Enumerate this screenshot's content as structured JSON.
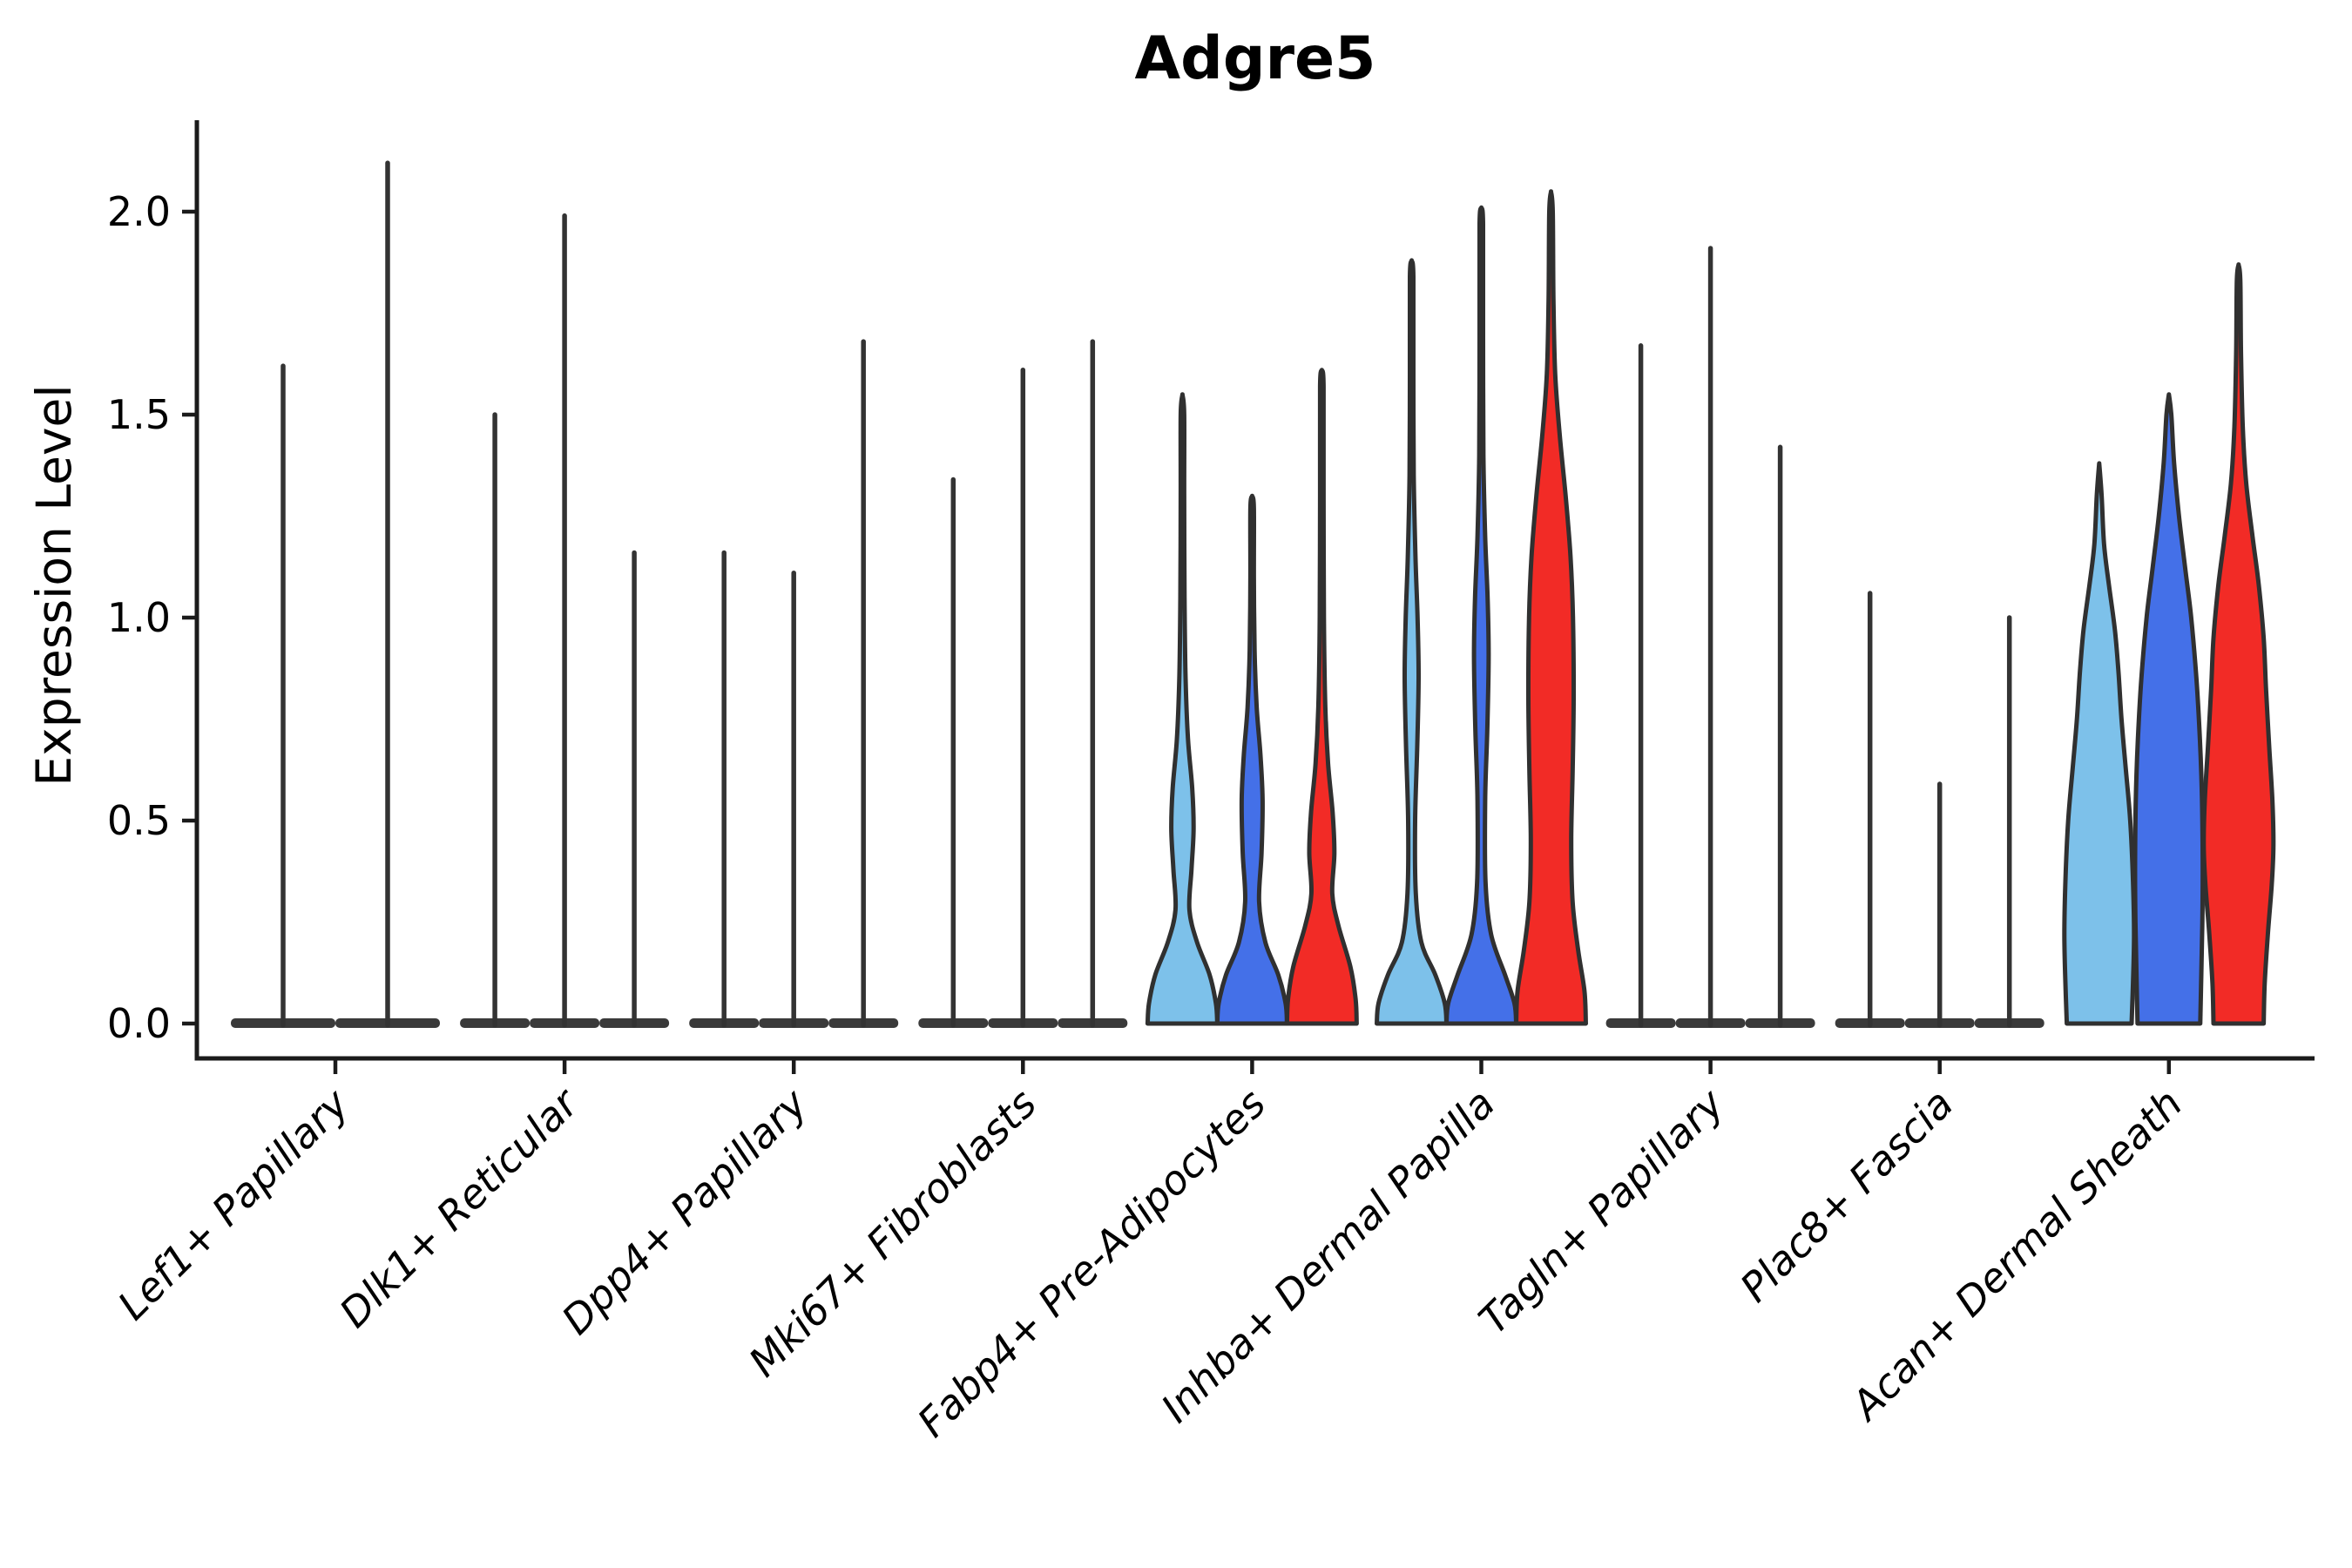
{
  "title": "Adgre5",
  "ylabel": "Expression Level",
  "chart_data": {
    "type": "violin",
    "title": "Adgre5",
    "xlabel": "",
    "ylabel": "Expression Level",
    "ylim": [
      -0.09,
      2.23
    ],
    "grid": false,
    "legend": "none",
    "y_ticks": [
      "0.0",
      "0.5",
      "1.0",
      "1.5",
      "2.0"
    ],
    "y_tick_values": [
      0,
      0.5,
      1.0,
      1.5,
      2.0
    ],
    "categories": [
      "Lef1+ Papillary",
      "Dlk1+ Reticular",
      "Dpp4+ Papillary",
      "Mki67+ Fibroblasts",
      "Fabp4+ Pre-Adipocytes",
      "Inhba+ Dermal Papilla",
      "Tagln+ Papillary",
      "Plac8+ Fascia",
      "Acan+ Dermal Sheath"
    ],
    "series_colors": {
      "light_blue": "#7DC1EA",
      "blue": "#4470E8",
      "red": "#F22B26"
    },
    "outline_color": "#303030",
    "spike_color": "#333333",
    "axis_color": "#1b1b1b",
    "groups": [
      {
        "category": "Lef1+ Papillary",
        "violins": [
          {
            "style": "spike",
            "color": "light_blue",
            "max": 1.62,
            "offset": -60,
            "halfwidth": 60
          },
          {
            "style": "spike",
            "color": "blue",
            "max": 2.12,
            "offset": 60,
            "halfwidth": 60
          }
        ]
      },
      {
        "category": "Dlk1+ Reticular",
        "violins": [
          {
            "style": "spike",
            "color": "light_blue",
            "max": 1.5,
            "offset": -80,
            "halfwidth": 40
          },
          {
            "style": "spike",
            "color": "blue",
            "max": 1.99,
            "offset": 0,
            "halfwidth": 40
          },
          {
            "style": "spike",
            "color": "red",
            "max": 1.16,
            "offset": 80,
            "halfwidth": 40
          }
        ]
      },
      {
        "category": "Dpp4+ Papillary",
        "violins": [
          {
            "style": "spike",
            "color": "light_blue",
            "max": 1.16,
            "offset": -80,
            "halfwidth": 40
          },
          {
            "style": "spike",
            "color": "blue",
            "max": 1.11,
            "offset": 0,
            "halfwidth": 40
          },
          {
            "style": "spike",
            "color": "red",
            "max": 1.68,
            "offset": 80,
            "halfwidth": 40
          }
        ]
      },
      {
        "category": "Mki67+ Fibroblasts",
        "violins": [
          {
            "style": "spike",
            "color": "light_blue",
            "max": 1.34,
            "offset": -80,
            "halfwidth": 40
          },
          {
            "style": "spike",
            "color": "blue",
            "max": 1.61,
            "offset": 0,
            "halfwidth": 40
          },
          {
            "style": "spike",
            "color": "red",
            "max": 1.68,
            "offset": 80,
            "halfwidth": 40
          }
        ]
      },
      {
        "category": "Fabp4+ Pre-Adipocytes",
        "violins": [
          {
            "style": "shaped",
            "color": "light_blue",
            "max": 1.55,
            "offset": -80,
            "halfwidth": 40,
            "profile": [
              [
                0,
                1.0
              ],
              [
                0.05,
                0.96
              ],
              [
                0.12,
                0.78
              ],
              [
                0.2,
                0.42
              ],
              [
                0.28,
                0.2
              ],
              [
                0.38,
                0.26
              ],
              [
                0.48,
                0.32
              ],
              [
                0.58,
                0.28
              ],
              [
                0.7,
                0.16
              ],
              [
                0.85,
                0.09
              ],
              [
                1.05,
                0.06
              ],
              [
                1.3,
                0.05
              ],
              [
                1.5,
                0.05
              ],
              [
                1.55,
                0
              ]
            ]
          },
          {
            "style": "shaped",
            "color": "blue",
            "max": 1.3,
            "offset": 0,
            "halfwidth": 40,
            "profile": [
              [
                0,
                1.0
              ],
              [
                0.05,
                0.96
              ],
              [
                0.12,
                0.75
              ],
              [
                0.2,
                0.38
              ],
              [
                0.3,
                0.2
              ],
              [
                0.42,
                0.27
              ],
              [
                0.55,
                0.3
              ],
              [
                0.66,
                0.24
              ],
              [
                0.78,
                0.13
              ],
              [
                0.92,
                0.07
              ],
              [
                1.1,
                0.05
              ],
              [
                1.27,
                0.05
              ],
              [
                1.3,
                0
              ]
            ]
          },
          {
            "style": "shaped",
            "color": "red",
            "max": 1.61,
            "offset": 80,
            "halfwidth": 40,
            "profile": [
              [
                0,
                1.0
              ],
              [
                0.06,
                0.97
              ],
              [
                0.14,
                0.82
              ],
              [
                0.24,
                0.48
              ],
              [
                0.32,
                0.3
              ],
              [
                0.42,
                0.36
              ],
              [
                0.52,
                0.31
              ],
              [
                0.64,
                0.18
              ],
              [
                0.78,
                0.1
              ],
              [
                1.0,
                0.06
              ],
              [
                1.3,
                0.05
              ],
              [
                1.57,
                0.05
              ],
              [
                1.61,
                0
              ]
            ]
          }
        ]
      },
      {
        "category": "Inhba+ Dermal Papilla",
        "violins": [
          {
            "style": "shaped",
            "color": "light_blue",
            "max": 1.88,
            "offset": -80,
            "halfwidth": 40,
            "profile": [
              [
                0,
                1.0
              ],
              [
                0.05,
                0.95
              ],
              [
                0.12,
                0.68
              ],
              [
                0.2,
                0.28
              ],
              [
                0.32,
                0.12
              ],
              [
                0.5,
                0.1
              ],
              [
                0.68,
                0.16
              ],
              [
                0.85,
                0.2
              ],
              [
                1.0,
                0.17
              ],
              [
                1.15,
                0.11
              ],
              [
                1.35,
                0.06
              ],
              [
                1.6,
                0.05
              ],
              [
                1.84,
                0.05
              ],
              [
                1.88,
                0
              ]
            ]
          },
          {
            "style": "shaped",
            "color": "blue",
            "max": 2.01,
            "offset": 0,
            "halfwidth": 40,
            "profile": [
              [
                0,
                1.0
              ],
              [
                0.05,
                0.95
              ],
              [
                0.12,
                0.68
              ],
              [
                0.22,
                0.28
              ],
              [
                0.35,
                0.12
              ],
              [
                0.55,
                0.11
              ],
              [
                0.72,
                0.17
              ],
              [
                0.9,
                0.21
              ],
              [
                1.05,
                0.18
              ],
              [
                1.2,
                0.11
              ],
              [
                1.4,
                0.06
              ],
              [
                1.7,
                0.05
              ],
              [
                1.97,
                0.05
              ],
              [
                2.01,
                0
              ]
            ]
          },
          {
            "style": "shaped",
            "color": "red",
            "max": 2.05,
            "offset": 80,
            "halfwidth": 40,
            "profile": [
              [
                0,
                1.0
              ],
              [
                0.08,
                0.96
              ],
              [
                0.18,
                0.78
              ],
              [
                0.3,
                0.62
              ],
              [
                0.45,
                0.58
              ],
              [
                0.62,
                0.62
              ],
              [
                0.8,
                0.65
              ],
              [
                1.0,
                0.63
              ],
              [
                1.15,
                0.56
              ],
              [
                1.3,
                0.42
              ],
              [
                1.45,
                0.25
              ],
              [
                1.6,
                0.12
              ],
              [
                1.78,
                0.07
              ],
              [
                2.0,
                0.05
              ],
              [
                2.05,
                0
              ]
            ]
          }
        ]
      },
      {
        "category": "Tagln+ Papillary",
        "violins": [
          {
            "style": "spike",
            "color": "light_blue",
            "max": 1.67,
            "offset": -80,
            "halfwidth": 40
          },
          {
            "style": "spike",
            "color": "blue",
            "max": 1.91,
            "offset": 0,
            "halfwidth": 40
          },
          {
            "style": "spike",
            "color": "red",
            "max": 1.42,
            "offset": 80,
            "halfwidth": 40
          }
        ]
      },
      {
        "category": "Plac8+ Fascia",
        "violins": [
          {
            "style": "spike",
            "color": "light_blue",
            "max": 1.06,
            "offset": -80,
            "halfwidth": 40
          },
          {
            "style": "spike",
            "color": "blue",
            "max": 0.59,
            "offset": 0,
            "halfwidth": 40
          },
          {
            "style": "spike",
            "color": "red",
            "max": 1.0,
            "offset": 80,
            "halfwidth": 40
          }
        ]
      },
      {
        "category": "Acan+ Dermal Sheath",
        "violins": [
          {
            "style": "shaped",
            "color": "light_blue",
            "max": 1.38,
            "offset": -80,
            "halfwidth": 40,
            "profile": [
              [
                0,
                0.93
              ],
              [
                0.1,
                0.97
              ],
              [
                0.22,
                1.0
              ],
              [
                0.35,
                0.97
              ],
              [
                0.5,
                0.89
              ],
              [
                0.63,
                0.76
              ],
              [
                0.75,
                0.64
              ],
              [
                0.87,
                0.55
              ],
              [
                0.97,
                0.45
              ],
              [
                1.08,
                0.28
              ],
              [
                1.18,
                0.14
              ],
              [
                1.3,
                0.07
              ],
              [
                1.38,
                0
              ]
            ]
          },
          {
            "style": "shaped",
            "color": "blue",
            "max": 1.55,
            "offset": 0,
            "halfwidth": 40,
            "profile": [
              [
                0,
                0.9
              ],
              [
                0.12,
                0.93
              ],
              [
                0.25,
                0.96
              ],
              [
                0.4,
                0.97
              ],
              [
                0.55,
                0.95
              ],
              [
                0.7,
                0.89
              ],
              [
                0.85,
                0.79
              ],
              [
                1.0,
                0.64
              ],
              [
                1.12,
                0.47
              ],
              [
                1.25,
                0.29
              ],
              [
                1.38,
                0.15
              ],
              [
                1.5,
                0.07
              ],
              [
                1.55,
                0
              ]
            ]
          },
          {
            "style": "shaped",
            "color": "red",
            "max": 1.87,
            "offset": 80,
            "halfwidth": 40,
            "profile": [
              [
                0,
                0.72
              ],
              [
                0.1,
                0.75
              ],
              [
                0.22,
                0.84
              ],
              [
                0.34,
                0.95
              ],
              [
                0.44,
                1.0
              ],
              [
                0.55,
                0.97
              ],
              [
                0.68,
                0.88
              ],
              [
                0.82,
                0.79
              ],
              [
                0.95,
                0.72
              ],
              [
                1.08,
                0.58
              ],
              [
                1.2,
                0.4
              ],
              [
                1.33,
                0.22
              ],
              [
                1.47,
                0.12
              ],
              [
                1.65,
                0.07
              ],
              [
                1.83,
                0.05
              ],
              [
                1.87,
                0
              ]
            ]
          }
        ]
      }
    ]
  }
}
